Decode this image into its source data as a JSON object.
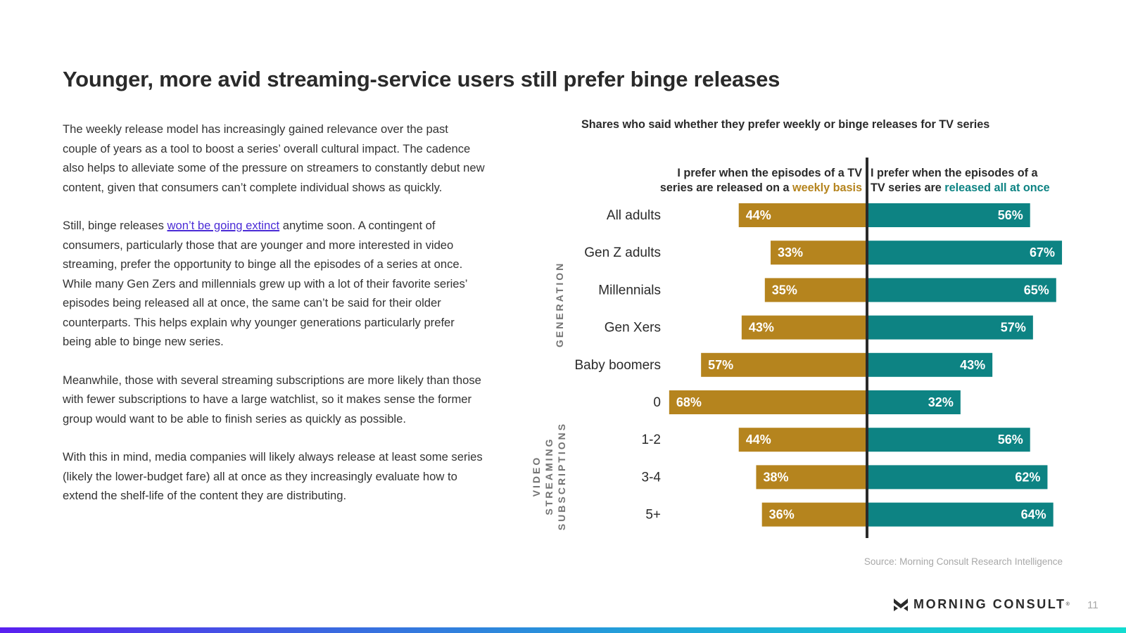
{
  "title": "Younger, more avid streaming-service users still prefer binge releases",
  "body": {
    "p1": "The weekly release model has increasingly gained relevance over the past couple of years as a tool to boost a series’ overall cultural impact. The cadence also helps to alleviate some of the pressure on streamers to constantly debut new content, given that consumers can’t complete individual shows as quickly.",
    "p2_before": "Still, binge releases ",
    "p2_link": "won’t be going extinct",
    "p2_after": " anytime soon. A contingent of consumers, particularly those that are younger and more interested in video streaming, prefer the opportunity to binge all the episodes of a series at once. While many Gen Zers and millennials grew up with a lot of their favorite series’ episodes being released all at once, the same can’t be said for their older counterparts. This helps explain why younger generations particularly prefer being able to binge new series.",
    "p3": "Meanwhile, those with several streaming subscriptions are more likely than those with fewer subscriptions to have a large watchlist, so it makes sense the former group would want to be able to finish series as quickly as possible.",
    "p4": "With this in mind, media companies will likely always release at least some series (likely the lower-budget fare) all at once as they increasingly evaluate how to extend the shelf-life of the content they are distributing."
  },
  "colors": {
    "weekly": "#b5841e",
    "binge": "#0d8383",
    "axis": "#2a2a2a",
    "link": "#4a2bd6"
  },
  "chart_data": {
    "type": "bar",
    "orientation": "horizontal-diverging",
    "title": "Shares who said whether they prefer weekly or binge releases for TV series",
    "legend": {
      "weekly": {
        "line1": "I prefer when the episodes of a TV",
        "line2_prefix": "series are released on a ",
        "line2_highlight": "weekly basis"
      },
      "binge": {
        "line1": "I prefer when the episodes of a",
        "line2_prefix": "TV series are ",
        "line2_highlight": "released all at once"
      }
    },
    "groups": [
      {
        "name": "",
        "categories": [
          "All adults"
        ]
      },
      {
        "name": "GENERATION",
        "categories": [
          "Gen Z adults",
          "Millennials",
          "Gen Xers",
          "Baby boomers"
        ]
      },
      {
        "name": "VIDEO STREAMING SUBSCRIPTIONS",
        "categories": [
          "0",
          "1-2",
          "3-4",
          "5+"
        ]
      }
    ],
    "categories": [
      "All adults",
      "Gen Z adults",
      "Millennials",
      "Gen Xers",
      "Baby boomers",
      "0",
      "1-2",
      "3-4",
      "5+"
    ],
    "series": [
      {
        "name": "Weekly basis",
        "values": [
          44,
          33,
          35,
          43,
          57,
          68,
          44,
          38,
          36
        ]
      },
      {
        "name": "Released all at once",
        "values": [
          56,
          67,
          65,
          57,
          43,
          32,
          56,
          62,
          64
        ]
      }
    ],
    "unit": "%",
    "xlim": [
      0,
      100
    ]
  },
  "group_labels": {
    "generation": "GENERATION",
    "subscriptions_l1": "VIDEO",
    "subscriptions_l2": "STREAMING",
    "subscriptions_l3": "SUBSCRIPTIONS"
  },
  "source": "Source: Morning Consult Research Intelligence",
  "brand": "MORNING CONSULT",
  "page_number": "11"
}
